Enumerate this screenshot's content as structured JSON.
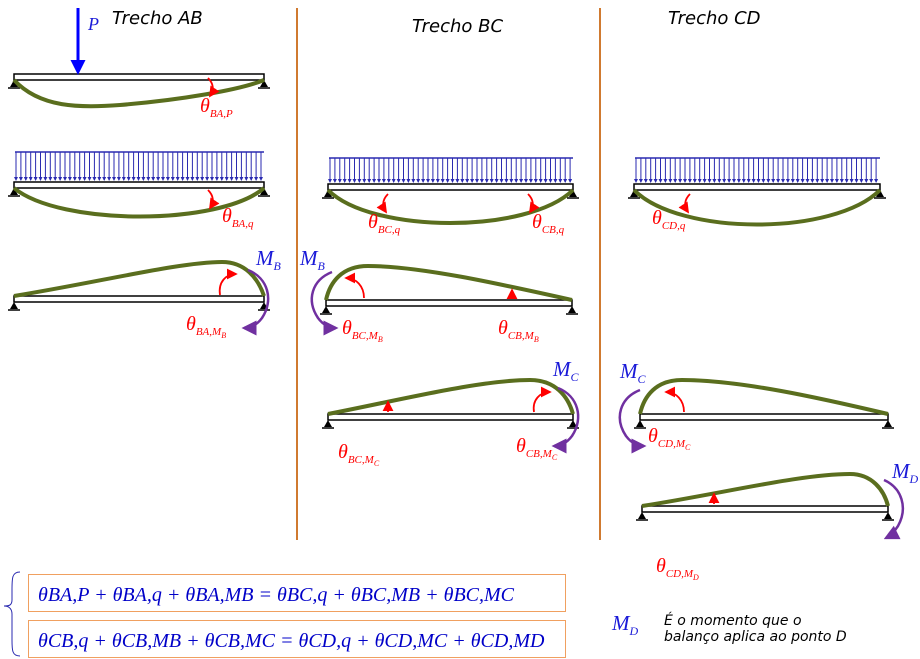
{
  "headings": {
    "ab": "Trecho AB",
    "bc": "Trecho BC",
    "cd": "Trecho CD"
  },
  "load_label": "P",
  "rotations": {
    "ba_p": {
      "main": "θ",
      "sub": "BA,P"
    },
    "ba_q": {
      "main": "θ",
      "sub": "BA,q"
    },
    "bc_q": {
      "main": "θ",
      "sub": "BC,q"
    },
    "cb_q": {
      "main": "θ",
      "sub": "CB,q"
    },
    "cd_q": {
      "main": "θ",
      "sub": "CD,q"
    },
    "ba_mb": {
      "main": "θ",
      "sub": "BA,M",
      "subsub": "B"
    },
    "bc_mb": {
      "main": "θ",
      "sub": "BC,M",
      "subsub": "B"
    },
    "cb_mb": {
      "main": "θ",
      "sub": "CB,M",
      "subsub": "B"
    },
    "bc_mc": {
      "main": "θ",
      "sub": "BC,M",
      "subsub": "C"
    },
    "cb_mc": {
      "main": "θ",
      "sub": "CB,M",
      "subsub": "C"
    },
    "cd_mc": {
      "main": "θ",
      "sub": "CD,M",
      "subsub": "C"
    },
    "cd_md": {
      "main": "θ",
      "sub": "CD,M",
      "subsub": "D"
    }
  },
  "moments": {
    "mb_left": {
      "main": "M",
      "sub": "B"
    },
    "mb_right": {
      "main": "M",
      "sub": "B"
    },
    "mc_left": {
      "main": "M",
      "sub": "C"
    },
    "mc_right": {
      "main": "M",
      "sub": "C"
    },
    "md_right": {
      "main": "M",
      "sub": "D"
    }
  },
  "equations": {
    "eq1": "θBA,P + θBA,q + θBA,MB = θBC,q + θBC,MB + θBC,MC",
    "eq2": "θCB,q + θCB,MB + θCB,MC = θCD,q + θCD,MC + θCD,MD"
  },
  "note": {
    "symbol": {
      "main": "M",
      "sub": "D"
    },
    "line1": "É o momento que o",
    "line2": "balanço aplica ao ponto D"
  },
  "colors": {
    "beam": "#000000",
    "deflection": "#5a6e1e",
    "load": "#0000ff",
    "rotation": "#ff0000",
    "moment_arrow": "#7030a0",
    "moment_label": "#1a1ad8",
    "divider": "#d07a30",
    "equation_box": "#f0a060"
  }
}
